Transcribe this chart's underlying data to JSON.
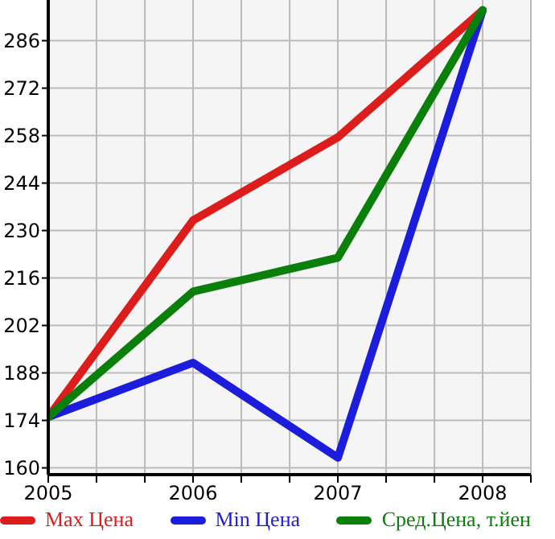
{
  "chart_data": {
    "type": "line",
    "x": [
      2005,
      2006,
      2007,
      2008
    ],
    "series": [
      {
        "name": "Max Цена",
        "color": "#dd1c1c",
        "values": [
          175,
          233,
          257.5,
          295
        ]
      },
      {
        "name": "Min Цена",
        "color": "#1c1cdd",
        "values": [
          175,
          191,
          163,
          295
        ]
      },
      {
        "name": "Сред.Цена, т.йен",
        "color": "#0a7f0a",
        "values": [
          175,
          212,
          222,
          295
        ]
      }
    ],
    "xlim": [
      2005,
      2008.333
    ],
    "xticks": [
      2005,
      {
        "value": 2005.333,
        "label": null
      },
      {
        "value": 2005.667,
        "label": null
      },
      2006,
      {
        "value": 2006.333,
        "label": null
      },
      {
        "value": 2006.667,
        "label": null
      },
      2007,
      {
        "value": 2007.333,
        "label": null
      },
      {
        "value": 2007.667,
        "label": null
      },
      2008,
      {
        "value": 2008.333,
        "label": null
      }
    ],
    "ylim": [
      158,
      298
    ],
    "yticks": [
      160,
      174,
      188,
      202,
      216,
      230,
      244,
      258,
      272,
      286
    ],
    "grid": true,
    "legend": "bottom",
    "marker": "none",
    "line_style": "solid"
  }
}
